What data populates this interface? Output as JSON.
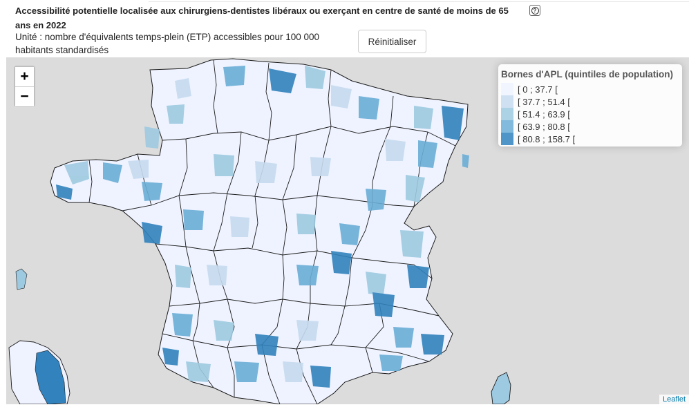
{
  "header": {
    "title": "Accessibilité potentielle localisée aux chirurgiens-dentistes libéraux ou exerçant en centre de santé de moins de 65 ans en 2022",
    "unit": "Unité : nombre d'équivalents temps-plein (ETP) accessibles pour 100 000 habitants standardisés",
    "reset_label": "Réinitialiser",
    "help_glyph": "?"
  },
  "map": {
    "zoom_in": "+",
    "zoom_out": "−",
    "attribution": "Leaflet",
    "background_color": "#dcdcdc",
    "border_color": "#1a1a1a",
    "legend": {
      "title": "Bornes d'APL (quintiles de population)",
      "classes": [
        {
          "label": "[ 0 ; 37.7 [",
          "color": "#eff3ff"
        },
        {
          "label": "[ 37.7 ; 51.4 [",
          "color": "#c6dbef"
        },
        {
          "label": "[ 51.4 ; 63.9 [",
          "color": "#9ecae1"
        },
        {
          "label": "[ 63.9 ; 80.8 [",
          "color": "#6baed6"
        },
        {
          "label": "[ 80.8 ; 158.7 [",
          "color": "#3182bd"
        }
      ]
    }
  }
}
